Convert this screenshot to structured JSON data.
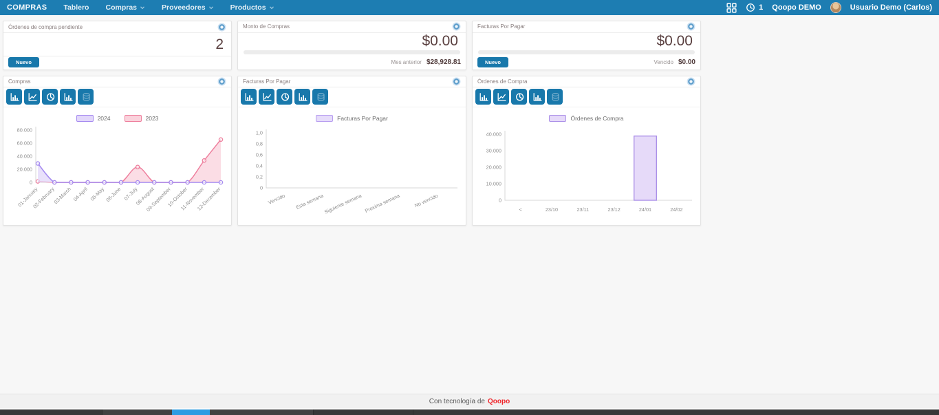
{
  "navbar": {
    "brand": "COMPRAS",
    "items": [
      {
        "label": "Tablero",
        "dropdown": false
      },
      {
        "label": "Compras",
        "dropdown": true
      },
      {
        "label": "Proveedores",
        "dropdown": true
      },
      {
        "label": "Productos",
        "dropdown": true
      }
    ],
    "activity_count": "1",
    "company": "Qoopo DEMO",
    "user": "Usuario Demo (Carlos)"
  },
  "kpi_cards": [
    {
      "title": "Órdenes de compra pendiente",
      "value": "2",
      "button": "Nuevo"
    },
    {
      "title": "Monto de Compras",
      "value": "$0.00",
      "footer_label": "Mes anterior",
      "footer_value": "$28,928.81"
    },
    {
      "title": "Facturas Por Pagar",
      "value": "$0.00",
      "button": "Nuevo",
      "footer_label": "Vencido",
      "footer_value": "$0.00"
    }
  ],
  "chart_data": [
    {
      "type": "area",
      "title": "Compras",
      "legend_position": "top",
      "grid": false,
      "categories": [
        "01-January",
        "02-February",
        "03-March",
        "04-April",
        "05-May",
        "06-June",
        "07-July",
        "08-August",
        "09-September",
        "10-October",
        "11-November",
        "12-December"
      ],
      "series": [
        {
          "name": "2024",
          "values": [
            28929,
            0,
            0,
            0,
            0,
            0,
            0,
            0,
            0,
            0,
            0,
            0
          ],
          "color": "#a58af0",
          "fill": "#e2d7fa"
        },
        {
          "name": "2023",
          "values": [
            1500,
            0,
            0,
            0,
            0,
            0,
            23500,
            0,
            0,
            0,
            33500,
            65500
          ],
          "color": "#ee7f9d",
          "fill": "#fad2dc"
        }
      ],
      "ylim": [
        0,
        80000
      ],
      "yticks": [
        "80.000",
        "60.000",
        "40.000",
        "20.000",
        "0"
      ]
    },
    {
      "type": "bar",
      "title": "Facturas Por Pagar",
      "legend_position": "top",
      "grid": false,
      "categories": [
        "Vencido",
        "Esta semana",
        "Siguiente semana",
        "Proxima semana",
        "No vencido"
      ],
      "series": [
        {
          "name": "Facturas Por Pagar",
          "values": [
            0,
            0,
            0,
            0,
            0
          ],
          "color": "#b79df0",
          "fill": "#e6dcfa"
        }
      ],
      "ylim": [
        0,
        1
      ],
      "yticks": [
        "1,0",
        "0,8",
        "0,6",
        "0,4",
        "0,2",
        "0"
      ]
    },
    {
      "type": "bar",
      "title": "Órdenes de Compra",
      "legend_position": "top",
      "grid": false,
      "categories": [
        "<",
        "23/10",
        "23/11",
        "23/12",
        "24/01",
        "24/02"
      ],
      "series": [
        {
          "name": "Órdenes de Compra",
          "values": [
            0,
            0,
            0,
            0,
            38900,
            0
          ],
          "color": "#ab90e8",
          "fill": "#e6daf9"
        }
      ],
      "ylim": [
        0,
        40000
      ],
      "yticks": [
        "40.000",
        "30.000",
        "20.000",
        "10.000",
        "0"
      ]
    }
  ],
  "footer": {
    "text": "Con tecnología de",
    "brand": "Qoopo"
  },
  "colors": {
    "navbar": "#1d7db2",
    "toolbar_button": "#1878ab",
    "kpi_value": "#5a4040",
    "brand_red": "#f0262b",
    "series_2024": "#a58af0",
    "series_2023": "#ee7f9d"
  },
  "icons": {
    "apps-icon": "grid",
    "activity-clock-icon": "clock",
    "settings-icon": "ring-circle",
    "chart_toolbar": [
      "bar-chart",
      "line-chart",
      "pie-chart",
      "bar-chart",
      "database"
    ]
  }
}
